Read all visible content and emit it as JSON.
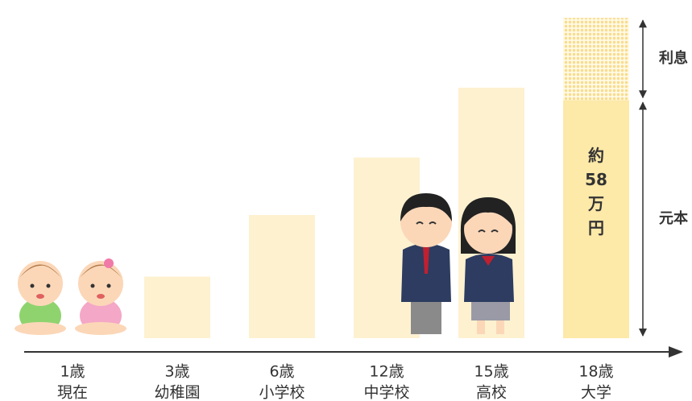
{
  "chart_data": {
    "type": "bar",
    "categories": [
      "1歳",
      "3歳",
      "6歳",
      "12歳",
      "15歳",
      "18歳"
    ],
    "sublabels": [
      "現在",
      "幼稚園",
      "小学校",
      "中学校",
      "高校",
      "大学"
    ],
    "series": [
      {
        "name": "元本",
        "color": "#fde9a8",
        "light_color": "#fdf1d0",
        "values": [
          null,
          15,
          30,
          44,
          61,
          58
        ],
        "value_labels": [
          null,
          null,
          null,
          null,
          null,
          "約58万円"
        ]
      },
      {
        "name": "利息",
        "color": "#fbe39a",
        "values": [
          null,
          null,
          null,
          null,
          null,
          20
        ]
      }
    ],
    "ylim": [
      0,
      80
    ]
  }
}
